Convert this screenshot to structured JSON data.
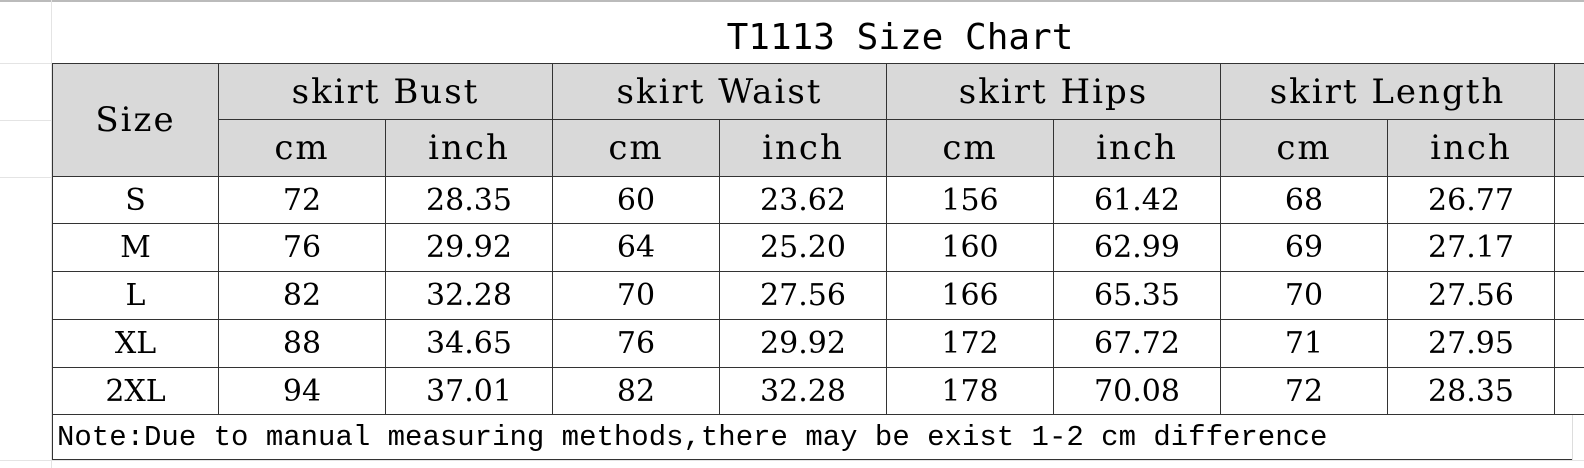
{
  "title": "T1113 Size Chart",
  "size_header": "Size",
  "groups": [
    "skirt Bust",
    "skirt Waist",
    "skirt Hips",
    "skirt Length"
  ],
  "units": [
    "cm",
    "inch"
  ],
  "rows": [
    [
      "S",
      "72",
      "28.35",
      "60",
      "23.62",
      "156",
      "61.42",
      "68",
      "26.77"
    ],
    [
      "M",
      "76",
      "29.92",
      "64",
      "25.20",
      "160",
      "62.99",
      "69",
      "27.17"
    ],
    [
      "L",
      "82",
      "32.28",
      "70",
      "27.56",
      "166",
      "65.35",
      "70",
      "27.56"
    ],
    [
      "XL",
      "88",
      "34.65",
      "76",
      "29.92",
      "172",
      "67.72",
      "71",
      "27.95"
    ],
    [
      "2XL",
      "94",
      "37.01",
      "82",
      "32.28",
      "178",
      "70.08",
      "72",
      "28.35"
    ]
  ],
  "note": "Note:Due to manual measuring methods,there may be exist 1-2 cm difference"
}
